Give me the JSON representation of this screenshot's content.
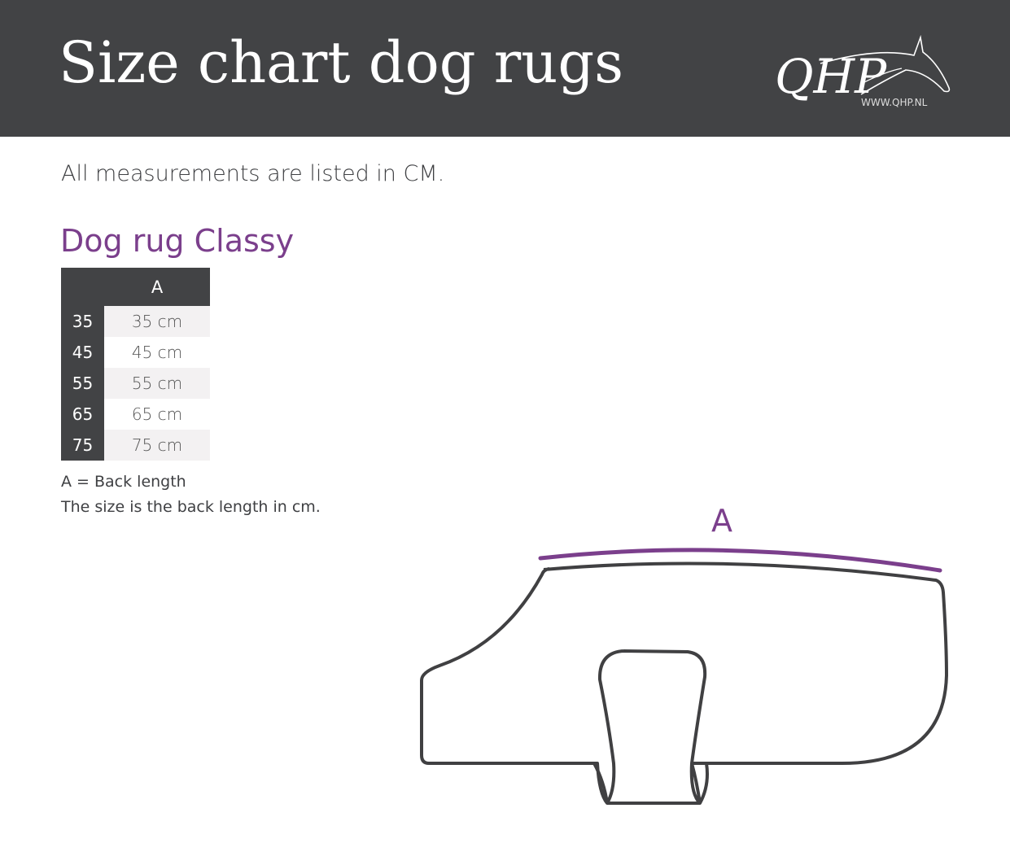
{
  "header": {
    "title": "Size chart dog rugs",
    "logo_text": "QHP",
    "logo_url": "WWW.QHP.NL",
    "background": "#424345"
  },
  "note": "All measurements are listed in CM.",
  "product": {
    "title": "Dog rug Classy",
    "accent": "#7b3f8c",
    "table": {
      "columns": [
        "",
        "A"
      ],
      "rows": [
        {
          "size": "35",
          "a": "35 cm"
        },
        {
          "size": "45",
          "a": "45 cm"
        },
        {
          "size": "55",
          "a": "55 cm"
        },
        {
          "size": "65",
          "a": "65 cm"
        },
        {
          "size": "75",
          "a": "75 cm"
        }
      ]
    },
    "legend": [
      "A = Back length",
      "The size is the back length in cm."
    ]
  },
  "diagram": {
    "label_a": "A"
  }
}
